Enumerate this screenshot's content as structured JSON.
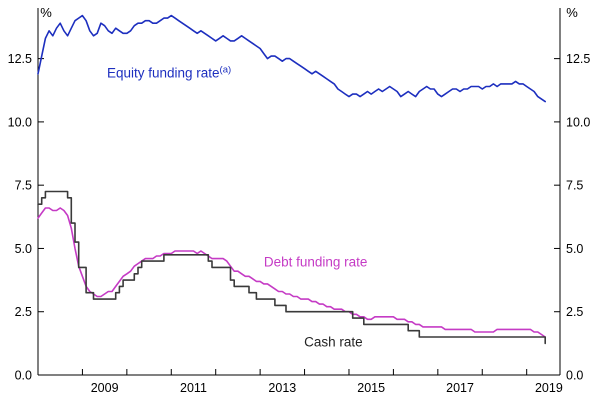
{
  "chart_data": {
    "type": "line",
    "title": "",
    "ylabel_left": "%",
    "ylabel_right": "%",
    "xlim": [
      2008,
      2019.75
    ],
    "ylim": [
      0,
      14.5
    ],
    "y_ticks": [
      0,
      2.5,
      5,
      7.5,
      10,
      12.5
    ],
    "y_tick_labels": [
      "0.0",
      "2.5",
      "5.0",
      "7.5",
      "10.0",
      "12.5"
    ],
    "x_axis_year_ticks": [
      2009,
      2010,
      2011,
      2012,
      2013,
      2014,
      2015,
      2016,
      2017,
      2018,
      2019
    ],
    "x_tick_labels": [
      "2009",
      "2011",
      "2013",
      "2015",
      "2017",
      "2019"
    ],
    "x_tick_label_positions": [
      2009.5,
      2011.5,
      2013.5,
      2015.5,
      2017.5,
      2019.5
    ],
    "x_start_year": 2008.0,
    "x_step_years": 0.0833333,
    "grid": false,
    "legend_position": "inline-annotations",
    "series": [
      {
        "name": "Equity funding rate",
        "superscript": "(a)",
        "color": "#1d2fbf",
        "style": "line",
        "values": [
          11.9,
          12.6,
          13.3,
          13.6,
          13.4,
          13.7,
          13.9,
          13.6,
          13.4,
          13.7,
          14.0,
          14.1,
          14.2,
          14.0,
          13.6,
          13.4,
          13.5,
          13.9,
          13.8,
          13.6,
          13.5,
          13.7,
          13.6,
          13.5,
          13.5,
          13.6,
          13.8,
          13.9,
          13.9,
          14.0,
          14.0,
          13.9,
          13.9,
          14.0,
          14.1,
          14.1,
          14.2,
          14.1,
          14.0,
          13.9,
          13.8,
          13.7,
          13.6,
          13.5,
          13.6,
          13.5,
          13.4,
          13.3,
          13.2,
          13.3,
          13.4,
          13.3,
          13.2,
          13.2,
          13.3,
          13.4,
          13.3,
          13.2,
          13.1,
          13.0,
          12.9,
          12.7,
          12.5,
          12.6,
          12.6,
          12.5,
          12.4,
          12.5,
          12.5,
          12.4,
          12.3,
          12.2,
          12.1,
          12.0,
          11.9,
          12.0,
          11.9,
          11.8,
          11.7,
          11.6,
          11.5,
          11.3,
          11.2,
          11.1,
          11.0,
          11.1,
          11.1,
          11.0,
          11.1,
          11.2,
          11.1,
          11.2,
          11.3,
          11.2,
          11.3,
          11.4,
          11.3,
          11.2,
          11.0,
          11.1,
          11.2,
          11.1,
          11.0,
          11.2,
          11.3,
          11.4,
          11.3,
          11.3,
          11.1,
          11.0,
          11.1,
          11.2,
          11.3,
          11.3,
          11.2,
          11.3,
          11.3,
          11.4,
          11.4,
          11.4,
          11.3,
          11.4,
          11.4,
          11.5,
          11.4,
          11.5,
          11.5,
          11.5,
          11.5,
          11.6,
          11.5,
          11.5,
          11.4,
          11.3,
          11.2,
          11.0,
          10.9,
          10.8
        ]
      },
      {
        "name": "Debt funding rate",
        "superscript": "",
        "color": "#c53bc5",
        "style": "line",
        "values": [
          6.2,
          6.4,
          6.6,
          6.6,
          6.5,
          6.5,
          6.6,
          6.5,
          6.3,
          5.8,
          5.0,
          4.3,
          3.9,
          3.5,
          3.3,
          3.2,
          3.1,
          3.1,
          3.2,
          3.3,
          3.3,
          3.5,
          3.7,
          3.9,
          4.0,
          4.1,
          4.3,
          4.4,
          4.5,
          4.6,
          4.6,
          4.6,
          4.7,
          4.7,
          4.8,
          4.8,
          4.8,
          4.9,
          4.9,
          4.9,
          4.9,
          4.9,
          4.9,
          4.8,
          4.9,
          4.8,
          4.7,
          4.6,
          4.6,
          4.6,
          4.6,
          4.5,
          4.3,
          4.1,
          4.1,
          4.0,
          3.9,
          3.9,
          3.8,
          3.7,
          3.7,
          3.6,
          3.6,
          3.5,
          3.4,
          3.3,
          3.3,
          3.2,
          3.2,
          3.1,
          3.1,
          3.0,
          3.0,
          3.0,
          2.9,
          2.9,
          2.8,
          2.8,
          2.7,
          2.7,
          2.6,
          2.6,
          2.6,
          2.5,
          2.5,
          2.4,
          2.4,
          2.3,
          2.3,
          2.2,
          2.2,
          2.3,
          2.3,
          2.3,
          2.3,
          2.3,
          2.3,
          2.2,
          2.2,
          2.2,
          2.1,
          2.1,
          2.0,
          2.0,
          1.9,
          1.9,
          1.9,
          1.9,
          1.9,
          1.9,
          1.8,
          1.8,
          1.8,
          1.8,
          1.8,
          1.8,
          1.8,
          1.8,
          1.7,
          1.7,
          1.7,
          1.7,
          1.7,
          1.7,
          1.8,
          1.8,
          1.8,
          1.8,
          1.8,
          1.8,
          1.8,
          1.8,
          1.8,
          1.8,
          1.7,
          1.7,
          1.6,
          1.5
        ]
      },
      {
        "name": "Cash rate",
        "superscript": "",
        "color": "#3a3a3a",
        "style": "step",
        "values": [
          6.75,
          7.0,
          7.25,
          7.25,
          7.25,
          7.25,
          7.25,
          7.25,
          7.0,
          6.0,
          5.25,
          4.25,
          4.25,
          3.25,
          3.25,
          3.0,
          3.0,
          3.0,
          3.0,
          3.0,
          3.0,
          3.25,
          3.5,
          3.75,
          3.75,
          3.75,
          4.0,
          4.25,
          4.5,
          4.5,
          4.5,
          4.5,
          4.5,
          4.5,
          4.75,
          4.75,
          4.75,
          4.75,
          4.75,
          4.75,
          4.75,
          4.75,
          4.75,
          4.75,
          4.75,
          4.75,
          4.5,
          4.25,
          4.25,
          4.25,
          4.25,
          4.25,
          3.75,
          3.5,
          3.5,
          3.5,
          3.5,
          3.25,
          3.25,
          3.0,
          3.0,
          3.0,
          3.0,
          3.0,
          2.75,
          2.75,
          2.75,
          2.5,
          2.5,
          2.5,
          2.5,
          2.5,
          2.5,
          2.5,
          2.5,
          2.5,
          2.5,
          2.5,
          2.5,
          2.5,
          2.5,
          2.5,
          2.5,
          2.5,
          2.5,
          2.25,
          2.25,
          2.25,
          2.0,
          2.0,
          2.0,
          2.0,
          2.0,
          2.0,
          2.0,
          2.0,
          2.0,
          2.0,
          2.0,
          2.0,
          1.75,
          1.75,
          1.75,
          1.5,
          1.5,
          1.5,
          1.5,
          1.5,
          1.5,
          1.5,
          1.5,
          1.5,
          1.5,
          1.5,
          1.5,
          1.5,
          1.5,
          1.5,
          1.5,
          1.5,
          1.5,
          1.5,
          1.5,
          1.5,
          1.5,
          1.5,
          1.5,
          1.5,
          1.5,
          1.5,
          1.5,
          1.5,
          1.5,
          1.5,
          1.5,
          1.5,
          1.5,
          1.25
        ]
      }
    ],
    "annotations": [
      {
        "text": "Equity funding rate",
        "sup": "(a)",
        "x": 2010.95,
        "y": 11.75,
        "color": "#1d2fbf"
      },
      {
        "text": "Debt funding rate",
        "sup": "",
        "x": 2014.25,
        "y": 4.28,
        "color": "#c53bc5"
      },
      {
        "text": "Cash rate",
        "sup": "",
        "x": 2014.65,
        "y": 1.12,
        "color": "#222222"
      }
    ],
    "axis_color": "#000000"
  }
}
